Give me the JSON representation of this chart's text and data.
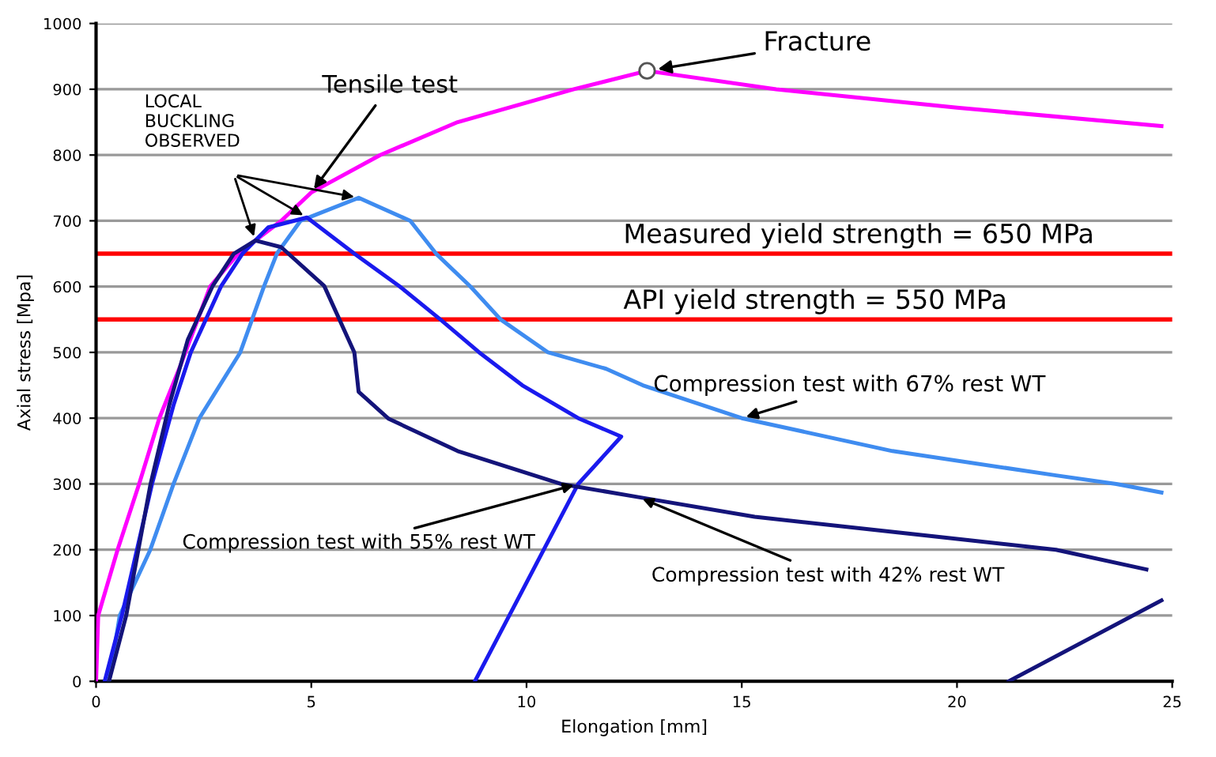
{
  "chart_data": {
    "type": "line",
    "xlabel": "Elongation [mm]",
    "ylabel": "Axial stress [Mpa]",
    "xlim": [
      0,
      25
    ],
    "xticks": [
      0,
      5,
      10,
      15,
      20,
      25
    ],
    "ylim": [
      0,
      1000
    ],
    "yticks": [
      0,
      100,
      200,
      300,
      400,
      500,
      600,
      700,
      800,
      900,
      1000
    ],
    "grid": "y",
    "legend": false,
    "marker": "none",
    "line_style": "solid",
    "series": [
      {
        "name": "Tensile test",
        "color": "#ff00ff",
        "x": [
          0,
          0.05,
          0.5,
          1.0,
          1.47,
          1.96,
          2.65,
          3.3,
          4.3,
          5.0,
          6.6,
          8.4,
          11.1,
          12.8,
          15.8,
          20.0,
          24.75
        ],
        "values": [
          0,
          100,
          200,
          300,
          400,
          480,
          600,
          650,
          700,
          743,
          800,
          850,
          900,
          928,
          900,
          872,
          844
        ]
      },
      {
        "name": "Compression test with 67% rest WT",
        "color": "#3f8cf0",
        "x": [
          0.3,
          0.55,
          1.26,
          1.8,
          2.4,
          3.35,
          3.9,
          4.2,
          4.75,
          6.1,
          7.3,
          7.9,
          8.7,
          9.4,
          10.5,
          11.85,
          12.7,
          15.0,
          18.5,
          22.3,
          23.7,
          24.75
        ],
        "values": [
          0,
          100,
          200,
          300,
          400,
          500,
          600,
          650,
          700,
          735,
          700,
          650,
          600,
          550,
          500,
          475,
          450,
          400,
          350,
          313,
          300,
          287
        ]
      },
      {
        "name": "Compression test with 55% rest WT",
        "color": "#1a1aee",
        "x": [
          0.2,
          0.6,
          1.3,
          1.8,
          2.2,
          2.9,
          3.4,
          4.0,
          4.9,
          6.0,
          7.06,
          8.0,
          8.9,
          9.9,
          11.2,
          12.2,
          11.2,
          10.4,
          9.6,
          8.8
        ],
        "values": [
          0,
          100,
          300,
          420,
          500,
          600,
          650,
          690,
          705,
          650,
          600,
          550,
          500,
          450,
          400,
          372,
          300,
          200,
          100,
          0
        ]
      },
      {
        "name": "Compression test with 42% rest WT",
        "color": "#14147a",
        "x": [
          0.3,
          0.7,
          1.26,
          1.7,
          2.13,
          2.7,
          3.2,
          3.7,
          4.3,
          5.3,
          6.0,
          6.1,
          6.8,
          8.4,
          10.8,
          12.6,
          15.3,
          19.5,
          22.3,
          24.4,
          null,
          21.2,
          24.75
        ],
        "values": [
          0,
          100,
          298,
          420,
          519,
          600,
          650,
          670,
          660,
          601,
          500,
          440,
          399,
          350,
          300,
          280,
          250,
          220,
          200,
          170,
          null,
          0,
          123
        ]
      }
    ],
    "ref_lines": [
      {
        "axis": "y",
        "value": 650,
        "label": "Measured yield strength = 650 MPa",
        "color": "#ff0000"
      },
      {
        "axis": "y",
        "value": 550,
        "label": "API yield strength = 550 MPa",
        "color": "#ff0000"
      }
    ],
    "annotations": [
      "LOCAL BUCKLING OBSERVED",
      {
        "text": "Fracture",
        "x": 12.8,
        "y": 928
      }
    ]
  }
}
